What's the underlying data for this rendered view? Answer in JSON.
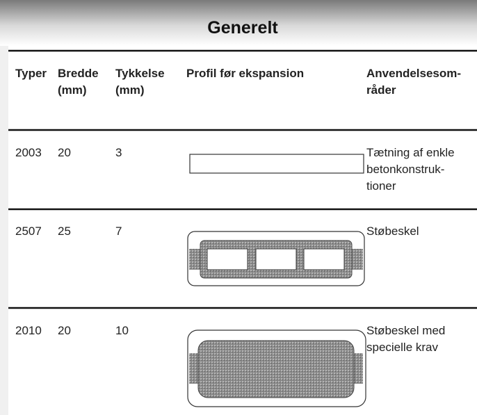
{
  "header": {
    "title": "Generelt"
  },
  "table": {
    "headers": [
      [
        "Typer"
      ],
      [
        "Bredde",
        "(mm)"
      ],
      [
        "Tykkelse",
        "(mm)"
      ],
      [
        "Profil før ekspansion"
      ],
      [
        "Anvendelsesom-",
        "råder"
      ]
    ],
    "rows": [
      [
        [
          "2003"
        ],
        [
          "20"
        ],
        [
          "3"
        ],
        [],
        [
          "Tætning af enkle",
          "betonkonstruk-",
          "tioner"
        ]
      ],
      [
        [
          "2507"
        ],
        [
          "25"
        ],
        [
          "7"
        ],
        [],
        [
          "Støbeskel"
        ]
      ],
      [
        [
          "2010"
        ],
        [
          "20"
        ],
        [
          "10"
        ],
        [],
        [
          "Støbeskel med",
          "specielle krav"
        ]
      ]
    ]
  }
}
